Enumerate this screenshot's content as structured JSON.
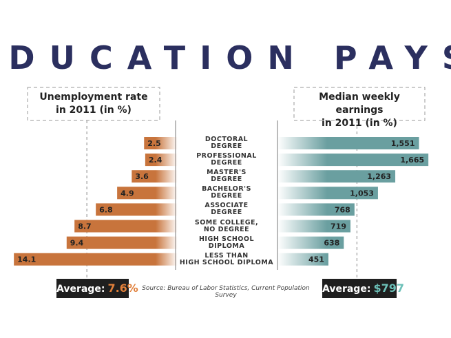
{
  "chart_data": {
    "type": "bar",
    "title": "EDUCATION PAYS",
    "categories": [
      "DOCTORAL\nDEGREE",
      "PROFESSIONAL\nDEGREE",
      "MASTER'S\nDEGREE",
      "BACHELOR'S\nDEGREE",
      "ASSOCIATE\nDEGREE",
      "SOME COLLEGE,\nNO DEGREE",
      "HIGH SCHOOL\nDIPLOMA",
      "LESS THAN\nHIGH SCHOOL DIPLOMA"
    ],
    "series": [
      {
        "name": "Unemployment rate\nin 2011 (in %)",
        "color": "#c8743c",
        "values": [
          2.5,
          2.4,
          3.6,
          4.9,
          6.8,
          8.7,
          9.4,
          14.1
        ]
      },
      {
        "name": "Median weekly earnings\nin 2011 (in %)",
        "color": "#6a9fa0",
        "values": [
          1551,
          1665,
          1263,
          1053,
          768,
          719,
          638,
          451
        ],
        "value_labels": [
          "1,551",
          "1,665",
          "1,263",
          "1,053",
          "768",
          "719",
          "638",
          "451"
        ]
      }
    ],
    "averages": [
      {
        "label": "Average:",
        "value": 7.6,
        "value_label": "7.6%",
        "color": "#e07f3a"
      },
      {
        "label": "Average:",
        "value": 797,
        "value_label": "$797",
        "color": "#6cc0b8"
      }
    ],
    "source": "Source: Bureau of Labor Statistics, Current Population Survey"
  }
}
